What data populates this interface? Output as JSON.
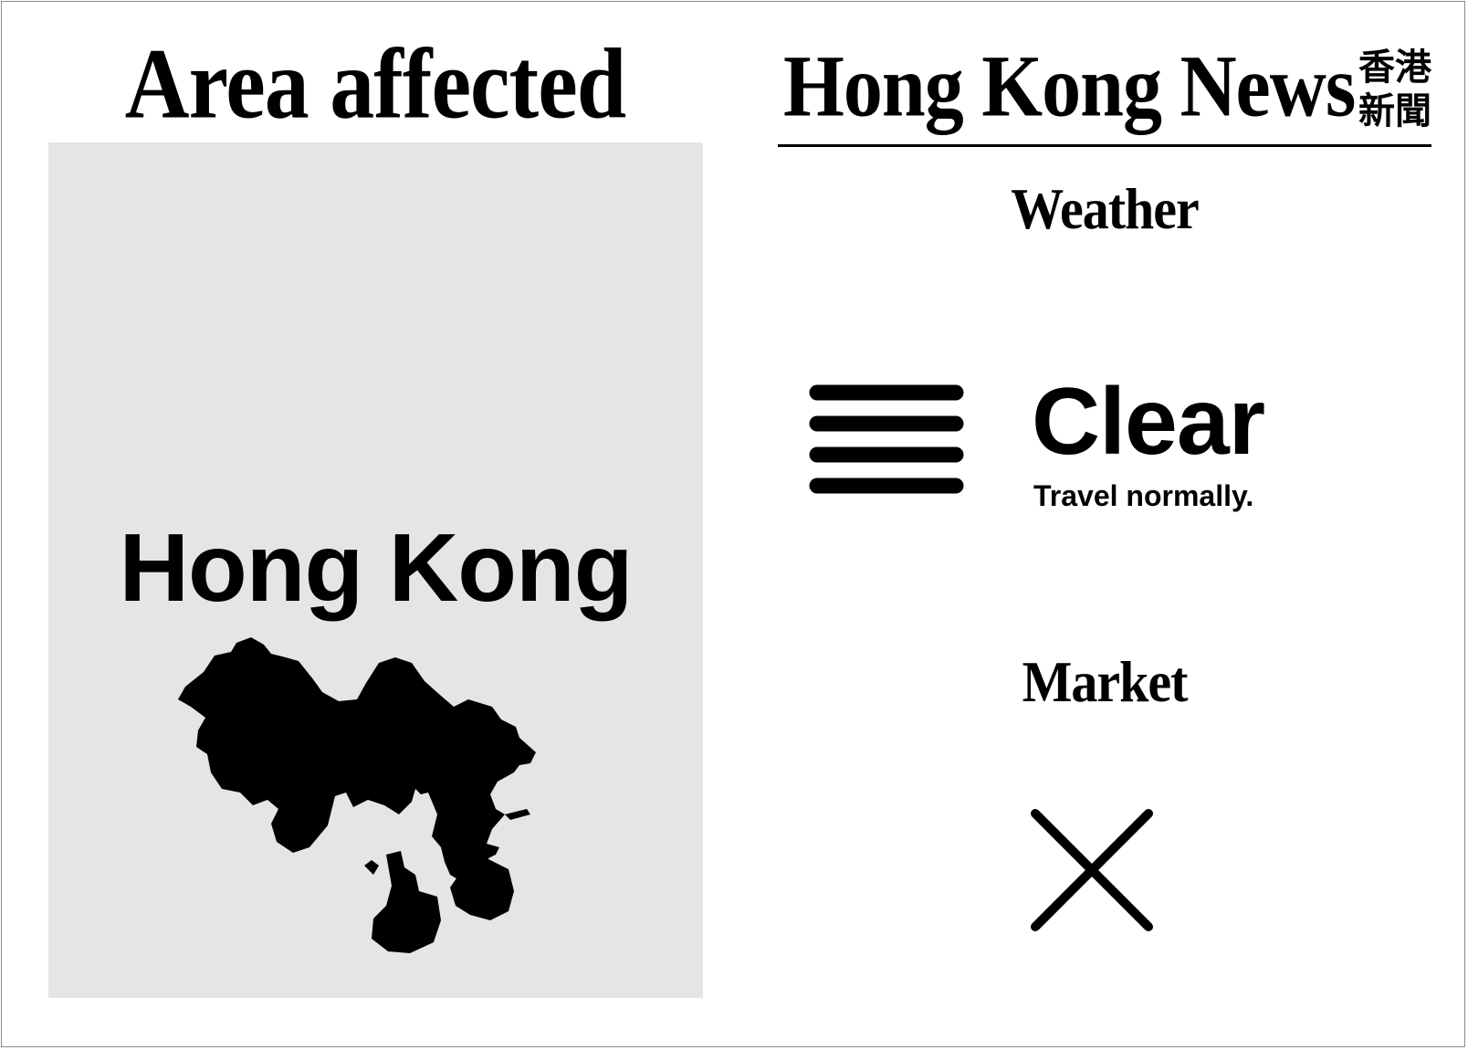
{
  "area": {
    "title": "Area affected",
    "region_name": "Hong Kong",
    "map_icon": "hong-kong-territory-silhouette"
  },
  "masthead": {
    "title": "Hong Kong News",
    "cjk_line1": "香港",
    "cjk_line2": "新聞"
  },
  "weather": {
    "heading": "Weather",
    "icon": "haze-lines-icon",
    "status": "Clear",
    "advice": "Travel normally."
  },
  "market": {
    "heading": "Market",
    "icon": "x-cross-icon"
  },
  "colors": {
    "background": "#ffffff",
    "panel": "#e5e5e5",
    "ink": "#000000"
  }
}
